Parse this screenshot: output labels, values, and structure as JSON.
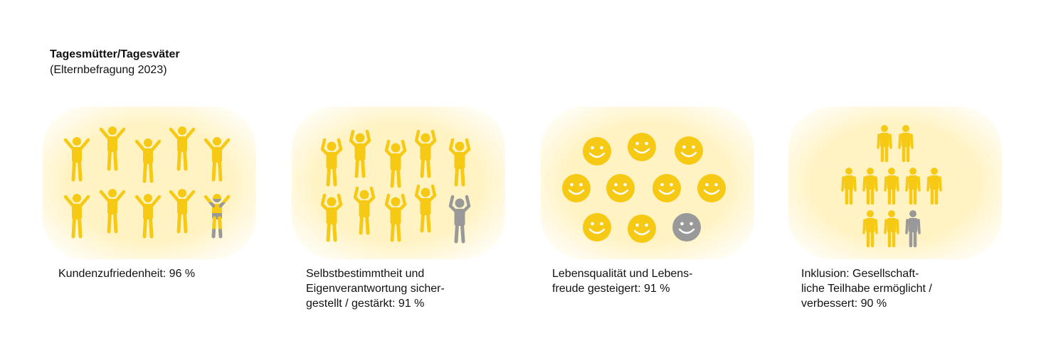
{
  "header": {
    "title": "Tagesmütter/Tagesväter",
    "subtitle": "(Elternbefragung 2023)"
  },
  "colors": {
    "yellow": "#f6c915",
    "grey": "#999999"
  },
  "panels": [
    {
      "icon": "jumping-person-icon",
      "count": 10,
      "share_percent": 96,
      "caption": [
        "Kundenzufriedenheit: 96 %"
      ]
    },
    {
      "icon": "cheering-person-icon",
      "count": 10,
      "share_percent": 91,
      "caption": [
        "Selbstbestimmtheit und",
        "Eigenverantwortung sicher-",
        "gestellt / gestärkt: 91 %"
      ]
    },
    {
      "icon": "smiley-face-icon",
      "count": 10,
      "share_percent": 91,
      "caption": [
        "Lebensqualität und Lebens-",
        "freude gesteigert: 91 %"
      ]
    },
    {
      "icon": "holding-hands-person-icon",
      "count": 10,
      "share_percent": 90,
      "caption": [
        "Inklusion: Gesellschaft-",
        "liche Teilhabe ermöglicht /",
        "verbessert: 90 %"
      ]
    }
  ]
}
